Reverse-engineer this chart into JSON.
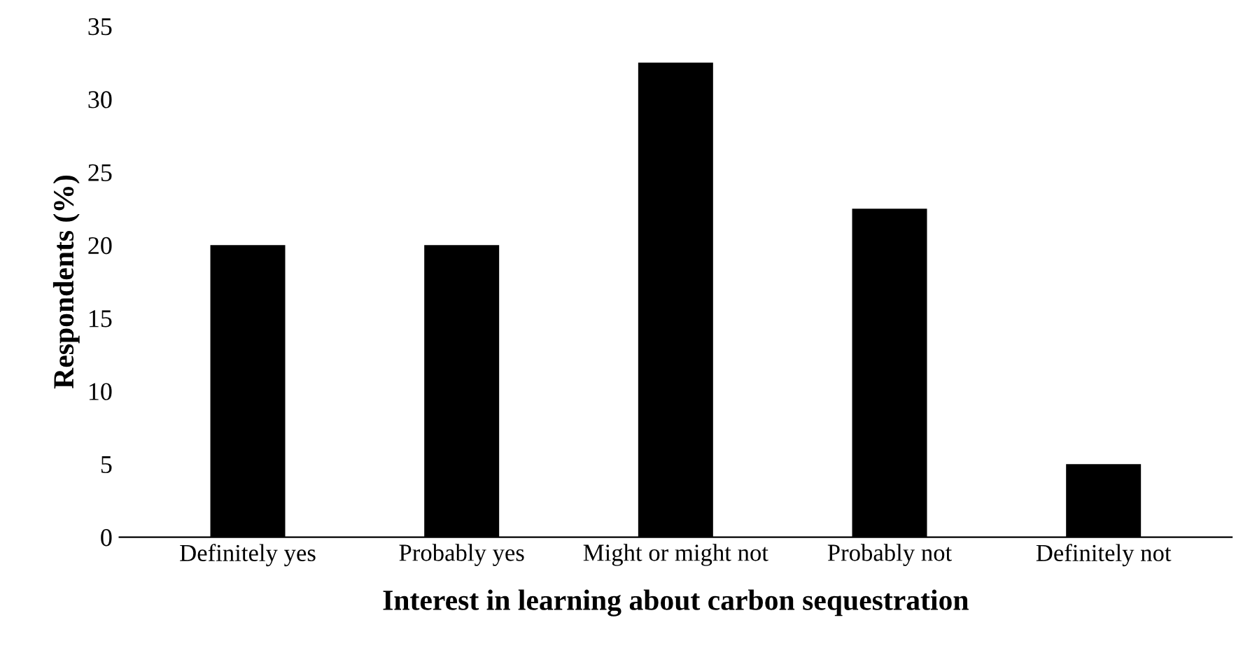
{
  "chart_data": {
    "type": "bar",
    "categories": [
      "Definitely yes",
      "Probably yes",
      "Might or might not",
      "Probably not",
      "Definitely not"
    ],
    "values": [
      20,
      20,
      32.5,
      22.5,
      5
    ],
    "color": "#000000",
    "ylim": [
      0,
      35
    ],
    "yticks": [
      0,
      5,
      10,
      15,
      20,
      25,
      30,
      35
    ],
    "grid": false,
    "xlabel": "Interest in learning about carbon sequestration",
    "ylabel": "Respondents (%)"
  }
}
